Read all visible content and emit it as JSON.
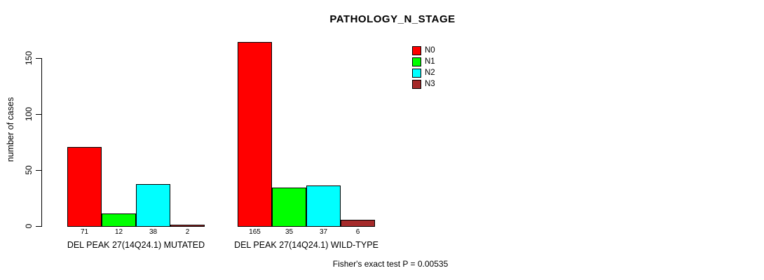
{
  "chart_data": {
    "type": "bar",
    "title": "PATHOLOGY_N_STAGE",
    "ylabel": "number of cases",
    "xlabel": "",
    "ylim": [
      0,
      165
    ],
    "yticks": [
      "0",
      "50",
      "100",
      "150"
    ],
    "grid": false,
    "legend_position": "top-right-inside",
    "legend": [
      {
        "label": "N0",
        "color": "#FF0000"
      },
      {
        "label": "N1",
        "color": "#00FF00"
      },
      {
        "label": "N2",
        "color": "#00FFFF"
      },
      {
        "label": "N3",
        "color": "#A52A2A"
      }
    ],
    "groups": [
      {
        "label": "DEL PEAK 27(14Q24.1) MUTATED",
        "values": [
          71,
          12,
          38,
          2
        ]
      },
      {
        "label": "DEL PEAK 27(14Q24.1) WILD-TYPE",
        "values": [
          165,
          35,
          37,
          6
        ]
      }
    ],
    "series": [
      {
        "name": "N0",
        "values": [
          71,
          165
        ]
      },
      {
        "name": "N1",
        "values": [
          12,
          35
        ]
      },
      {
        "name": "N2",
        "values": [
          38,
          37
        ]
      },
      {
        "name": "N3",
        "values": [
          2,
          6
        ]
      }
    ],
    "bar_value_labels": true,
    "annotation": "Fisher's exact test P = 0.00535"
  }
}
